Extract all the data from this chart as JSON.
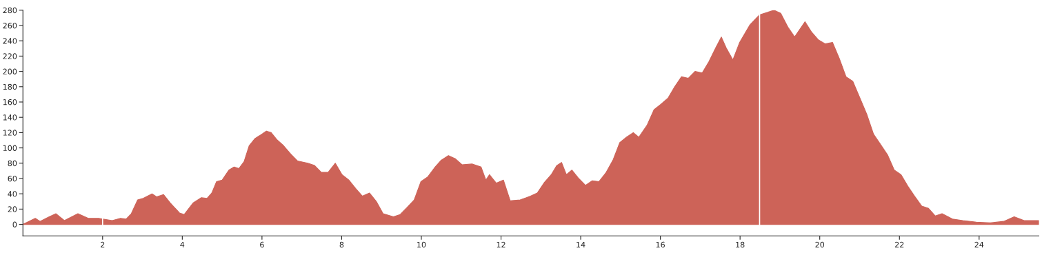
{
  "chart_data": {
    "type": "area",
    "color": "#cd6358",
    "x": [
      0,
      0.31,
      0.43,
      0.66,
      0.83,
      1.04,
      1.38,
      1.64,
      1.9,
      2.24,
      2.45,
      2.59,
      2.72,
      2.88,
      3.02,
      3.24,
      3.36,
      3.53,
      3.7,
      3.93,
      4.05,
      4.27,
      4.48,
      4.62,
      4.74,
      4.86,
      5.0,
      5.17,
      5.3,
      5.42,
      5.55,
      5.68,
      5.82,
      5.94,
      6.11,
      6.23,
      6.37,
      6.54,
      6.72,
      6.89,
      7.15,
      7.32,
      7.49,
      7.66,
      7.84,
      8.01,
      8.18,
      8.35,
      8.52,
      8.7,
      8.87,
      9.04,
      9.3,
      9.47,
      9.64,
      9.82,
      9.99,
      10.16,
      10.33,
      10.5,
      10.68,
      10.85,
      11.02,
      11.28,
      11.5,
      11.62,
      11.71,
      11.88,
      12.06,
      12.23,
      12.48,
      12.74,
      12.91,
      13.09,
      13.26,
      13.4,
      13.52,
      13.64,
      13.78,
      13.95,
      14.12,
      14.29,
      14.46,
      14.64,
      14.81,
      14.98,
      15.15,
      15.32,
      15.46,
      15.67,
      15.84,
      16.01,
      16.19,
      16.36,
      16.53,
      16.7,
      16.87,
      17.05,
      17.22,
      17.39,
      17.53,
      17.65,
      17.82,
      17.99,
      18.25,
      18.49,
      18.68,
      18.85,
      19.02,
      19.2,
      19.37,
      19.63,
      19.8,
      19.97,
      20.14,
      20.32,
      20.49,
      20.66,
      20.83,
      21.01,
      21.18,
      21.35,
      21.52,
      21.7,
      21.87,
      22.04,
      22.21,
      22.38,
      22.56,
      22.73,
      22.9,
      23.07,
      23.33,
      23.59,
      23.93,
      24.28,
      24.62,
      24.88,
      25.13,
      25.5
    ],
    "values": [
      0,
      8,
      4,
      10,
      14,
      5,
      14,
      8,
      8,
      5,
      8,
      7,
      14,
      32,
      34,
      40,
      36,
      39,
      28,
      15,
      13,
      28,
      35,
      34,
      41,
      56,
      58,
      71,
      75,
      73,
      82,
      103,
      112,
      116,
      122,
      120,
      111,
      103,
      92,
      83,
      80,
      77,
      68,
      68,
      80,
      65,
      58,
      47,
      37,
      41,
      30,
      14,
      10,
      13,
      22,
      32,
      56,
      62,
      74,
      84,
      90,
      86,
      78,
      79,
      75,
      58,
      65,
      54,
      58,
      31,
      32,
      37,
      41,
      55,
      65,
      77,
      81,
      65,
      71,
      60,
      51,
      57,
      56,
      68,
      84,
      107,
      114,
      120,
      114,
      130,
      150,
      157,
      165,
      180,
      193,
      191,
      200,
      198,
      213,
      231,
      245,
      231,
      215,
      238,
      261,
      274,
      277,
      280,
      276,
      258,
      245,
      265,
      251,
      241,
      236,
      238,
      217,
      193,
      187,
      165,
      144,
      118,
      105,
      91,
      71,
      65,
      50,
      37,
      24,
      21,
      11,
      14,
      7,
      5,
      3,
      2,
      4,
      10,
      5,
      5
    ],
    "xlim": [
      0,
      25.5
    ],
    "ylim": [
      -15,
      280
    ],
    "xticks": [
      2,
      4,
      6,
      8,
      10,
      12,
      14,
      16,
      18,
      20,
      22,
      24
    ],
    "yticks": [
      0,
      20,
      40,
      60,
      80,
      100,
      120,
      140,
      160,
      180,
      200,
      220,
      240,
      260,
      280
    ],
    "ref_lines": [
      {
        "axis": "x",
        "value": 2,
        "color": "#ffffff"
      },
      {
        "axis": "x",
        "value": 18.49,
        "color": "#ffffff"
      }
    ],
    "grid": false,
    "legend": false
  }
}
